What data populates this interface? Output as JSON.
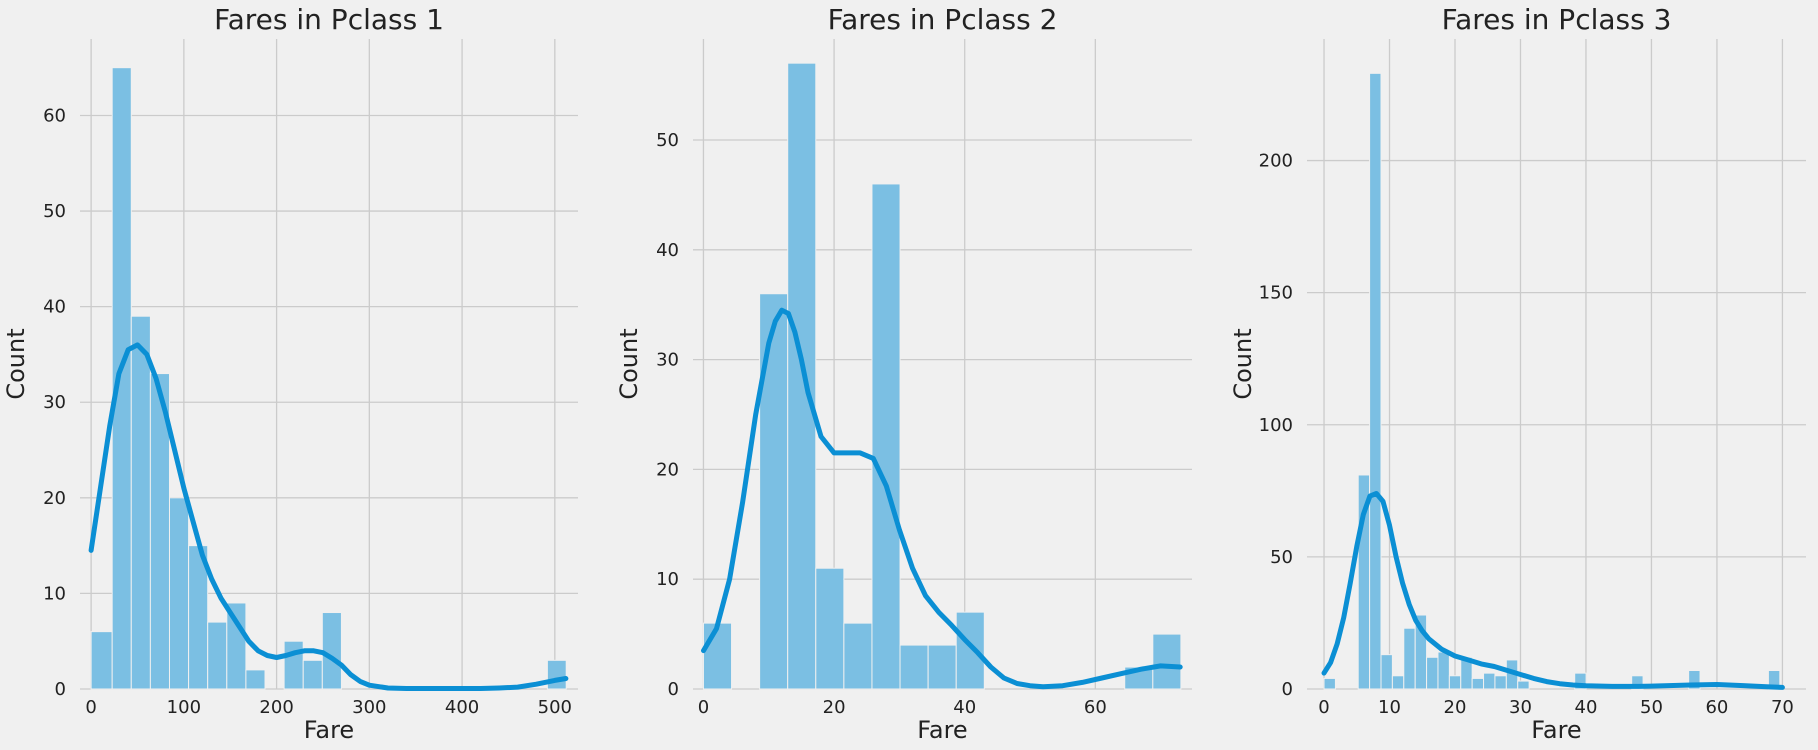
{
  "colors": {
    "background": "#f0f0f0",
    "bar": "#7bbfe3",
    "kde": "#0b8fd4",
    "grid": "#cbcbcb"
  },
  "chart_data": [
    {
      "type": "bar",
      "title": "Fares in Pclass 1",
      "xlabel": "Fare",
      "ylabel": "Count",
      "xlim": [
        -12,
        525
      ],
      "ylim": [
        0,
        68
      ],
      "xticks": [
        0,
        100,
        200,
        300,
        400,
        500
      ],
      "yticks": [
        0,
        10,
        20,
        30,
        40,
        50,
        60
      ],
      "grid": true,
      "bins": [
        {
          "x0": 0,
          "x1": 22.7,
          "value": 6
        },
        {
          "x0": 22.7,
          "x1": 43.3,
          "value": 65
        },
        {
          "x0": 43.3,
          "x1": 63.9,
          "value": 39
        },
        {
          "x0": 63.9,
          "x1": 84.5,
          "value": 33
        },
        {
          "x0": 84.5,
          "x1": 105.1,
          "value": 20
        },
        {
          "x0": 105.1,
          "x1": 125.7,
          "value": 15
        },
        {
          "x0": 125.7,
          "x1": 146.3,
          "value": 7
        },
        {
          "x0": 146.3,
          "x1": 166.9,
          "value": 9
        },
        {
          "x0": 166.9,
          "x1": 187.5,
          "value": 2
        },
        {
          "x0": 208.1,
          "x1": 228.7,
          "value": 5
        },
        {
          "x0": 228.7,
          "x1": 249.3,
          "value": 3
        },
        {
          "x0": 249.3,
          "x1": 269.9,
          "value": 8
        },
        {
          "x0": 492,
          "x1": 512.3,
          "value": 3
        }
      ],
      "kde": {
        "x": [
          0,
          10,
          20,
          30,
          40,
          50,
          60,
          70,
          80,
          90,
          100,
          110,
          120,
          130,
          140,
          150,
          160,
          170,
          180,
          190,
          200,
          210,
          220,
          230,
          240,
          250,
          260,
          270,
          280,
          290,
          300,
          320,
          340,
          360,
          380,
          400,
          420,
          440,
          460,
          480,
          500,
          512
        ],
        "y": [
          14.5,
          21,
          27.5,
          33,
          35.5,
          36,
          35,
          32.5,
          29,
          25,
          21,
          17.5,
          14,
          11.5,
          9.5,
          8,
          6.5,
          5,
          4,
          3.5,
          3.3,
          3.5,
          3.8,
          4,
          4,
          3.8,
          3.2,
          2.5,
          1.5,
          0.8,
          0.4,
          0.1,
          0.05,
          0.05,
          0.05,
          0.05,
          0.05,
          0.1,
          0.2,
          0.5,
          0.9,
          1.1
        ]
      }
    },
    {
      "type": "bar",
      "title": "Fares in Pclass 2",
      "xlabel": "Fare",
      "ylabel": "Count",
      "xlim": [
        -1.6,
        74.8
      ],
      "ylim": [
        0,
        59.2
      ],
      "xticks": [
        0,
        20,
        40,
        60
      ],
      "yticks": [
        0,
        10,
        20,
        30,
        40,
        50
      ],
      "grid": true,
      "bins": [
        {
          "x0": 0,
          "x1": 4.3,
          "value": 6
        },
        {
          "x0": 8.6,
          "x1": 12.9,
          "value": 36
        },
        {
          "x0": 12.9,
          "x1": 17.2,
          "value": 57
        },
        {
          "x0": 17.2,
          "x1": 21.5,
          "value": 11
        },
        {
          "x0": 21.5,
          "x1": 25.8,
          "value": 6
        },
        {
          "x0": 25.8,
          "x1": 30.1,
          "value": 46
        },
        {
          "x0": 30.1,
          "x1": 34.4,
          "value": 4
        },
        {
          "x0": 34.4,
          "x1": 38.7,
          "value": 4
        },
        {
          "x0": 38.7,
          "x1": 43.0,
          "value": 7
        },
        {
          "x0": 64.5,
          "x1": 68.8,
          "value": 2
        },
        {
          "x0": 68.8,
          "x1": 73.1,
          "value": 5
        }
      ],
      "kde": {
        "x": [
          0,
          2,
          4,
          6,
          8,
          10,
          11,
          12,
          13,
          14,
          15,
          16,
          18,
          20,
          22,
          24,
          26,
          28,
          30,
          32,
          34,
          36,
          38,
          40,
          42,
          44,
          46,
          48,
          50,
          52,
          55,
          58,
          61,
          64,
          67,
          70,
          73
        ],
        "y": [
          3.5,
          5.5,
          10,
          17,
          25,
          31.5,
          33.5,
          34.5,
          34.2,
          32.5,
          30,
          27,
          23,
          21.5,
          21.5,
          21.5,
          21,
          18.5,
          14.5,
          11,
          8.5,
          7,
          5.8,
          4.5,
          3.3,
          2,
          1,
          0.5,
          0.3,
          0.2,
          0.3,
          0.6,
          1,
          1.4,
          1.8,
          2.1,
          2
        ]
      }
    },
    {
      "type": "bar",
      "title": "Fares in Pclass 3",
      "xlabel": "Fare",
      "ylabel": "Count",
      "xlim": [
        -2.6,
        73.6
      ],
      "ylim": [
        0,
        246
      ],
      "xticks": [
        0,
        10,
        20,
        30,
        40,
        50,
        60,
        70
      ],
      "yticks": [
        0,
        50,
        100,
        150,
        200
      ],
      "grid": true,
      "bins": [
        {
          "x0": 0,
          "x1": 1.74,
          "value": 4
        },
        {
          "x0": 5.22,
          "x1": 6.96,
          "value": 81
        },
        {
          "x0": 6.96,
          "x1": 8.7,
          "value": 233
        },
        {
          "x0": 8.7,
          "x1": 10.44,
          "value": 13
        },
        {
          "x0": 10.44,
          "x1": 12.18,
          "value": 5
        },
        {
          "x0": 12.18,
          "x1": 13.92,
          "value": 23
        },
        {
          "x0": 13.92,
          "x1": 15.66,
          "value": 28
        },
        {
          "x0": 15.66,
          "x1": 17.4,
          "value": 12
        },
        {
          "x0": 17.4,
          "x1": 19.14,
          "value": 14
        },
        {
          "x0": 19.14,
          "x1": 20.88,
          "value": 5
        },
        {
          "x0": 20.88,
          "x1": 22.62,
          "value": 12
        },
        {
          "x0": 22.62,
          "x1": 24.36,
          "value": 4
        },
        {
          "x0": 24.36,
          "x1": 26.1,
          "value": 6
        },
        {
          "x0": 26.1,
          "x1": 27.84,
          "value": 5
        },
        {
          "x0": 27.84,
          "x1": 29.58,
          "value": 11
        },
        {
          "x0": 29.58,
          "x1": 31.32,
          "value": 3
        },
        {
          "x0": 38.28,
          "x1": 40.02,
          "value": 6
        },
        {
          "x0": 46.98,
          "x1": 48.72,
          "value": 5
        },
        {
          "x0": 55.68,
          "x1": 57.42,
          "value": 7
        },
        {
          "x0": 67.86,
          "x1": 69.6,
          "value": 7
        }
      ],
      "kde": {
        "x": [
          0,
          1,
          2,
          3,
          4,
          5,
          6,
          7,
          8,
          9,
          10,
          11,
          12,
          13,
          14,
          15,
          16,
          18,
          20,
          22,
          24,
          26,
          28,
          30,
          32,
          34,
          36,
          38,
          40,
          44,
          48,
          52,
          56,
          60,
          64,
          68,
          70
        ],
        "y": [
          6,
          10,
          17,
          27,
          40,
          54,
          66,
          73,
          74,
          71,
          62,
          50,
          40,
          32,
          26,
          22,
          19,
          15,
          12.5,
          11,
          9.5,
          8.5,
          7,
          5.5,
          4,
          2.8,
          2,
          1.5,
          1.2,
          1,
          1,
          1.2,
          1.5,
          1.7,
          1.3,
          0.8,
          0.6
        ]
      }
    }
  ]
}
